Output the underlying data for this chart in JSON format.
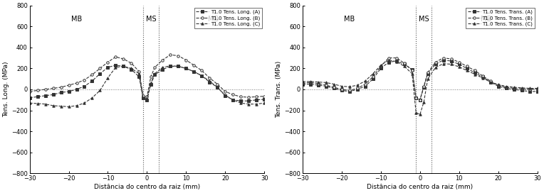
{
  "left_ylabel": "Tens. Long. (MPa)",
  "right_ylabel": "Tens. Trans. (MPa)",
  "xlabel": "Distância do centro da raiz (mm)",
  "xlim": [
    -30,
    30
  ],
  "ylim": [
    -800,
    800
  ],
  "yticks": [
    -800,
    -600,
    -400,
    -200,
    0,
    200,
    400,
    600,
    800
  ],
  "xticks": [
    -30,
    -20,
    -10,
    0,
    10,
    20,
    30
  ],
  "vlines": [
    -1,
    3
  ],
  "MB_label": "MB",
  "MS_label": "MS",
  "left_legend": [
    "T1.0 Tens. Long. (A)",
    "T1.0 Tens. Long. (B)",
    "T1.0 Tens. Long. (C)"
  ],
  "right_legend": [
    "T1.0 Tens. Trans. (A)",
    "T1.0 Tens. Trans. (B)",
    "T1.0 Tens. Trans. (C)"
  ],
  "long_A_x": [
    -30,
    -28,
    -26,
    -24,
    -22,
    -20,
    -18,
    -16,
    -14,
    -12,
    -10,
    -8,
    -6,
    -4,
    -2,
    -1,
    0,
    1,
    2,
    4,
    6,
    8,
    10,
    12,
    14,
    16,
    18,
    20,
    22,
    24,
    26,
    28,
    30
  ],
  "long_A_y": [
    -80,
    -70,
    -60,
    -50,
    -30,
    -20,
    0,
    30,
    80,
    150,
    210,
    230,
    220,
    190,
    120,
    -80,
    -100,
    50,
    140,
    190,
    220,
    220,
    200,
    170,
    130,
    70,
    20,
    -60,
    -100,
    -110,
    -110,
    -100,
    -95
  ],
  "long_B_x": [
    -30,
    -28,
    -26,
    -24,
    -22,
    -20,
    -18,
    -16,
    -14,
    -12,
    -10,
    -8,
    -6,
    -4,
    -2,
    -1,
    0,
    1,
    2,
    4,
    6,
    8,
    10,
    12,
    14,
    16,
    18,
    20,
    22,
    24,
    26,
    28,
    30
  ],
  "long_B_y": [
    -20,
    -10,
    0,
    10,
    20,
    40,
    60,
    90,
    140,
    200,
    260,
    310,
    290,
    250,
    170,
    -60,
    -70,
    120,
    210,
    280,
    330,
    320,
    280,
    230,
    180,
    110,
    50,
    -20,
    -50,
    -70,
    -75,
    -70,
    -65
  ],
  "long_C_x": [
    -30,
    -28,
    -26,
    -24,
    -22,
    -20,
    -18,
    -16,
    -14,
    -12,
    -10,
    -8,
    -6,
    -4,
    -2,
    -1,
    0,
    1,
    2,
    4,
    6,
    8,
    10,
    12,
    14,
    16,
    18,
    20,
    22,
    24,
    26,
    28,
    30
  ],
  "long_C_y": [
    -130,
    -135,
    -140,
    -155,
    -160,
    -165,
    -155,
    -130,
    -80,
    -10,
    110,
    210,
    220,
    200,
    150,
    -80,
    -90,
    60,
    150,
    210,
    225,
    220,
    200,
    170,
    130,
    80,
    20,
    -55,
    -100,
    -130,
    -140,
    -140,
    -130
  ],
  "trans_A_x": [
    -30,
    -28,
    -26,
    -24,
    -22,
    -20,
    -18,
    -16,
    -14,
    -12,
    -10,
    -8,
    -6,
    -4,
    -2,
    -1,
    0,
    1,
    2,
    4,
    6,
    8,
    10,
    12,
    14,
    16,
    18,
    20,
    22,
    24,
    26,
    28,
    30
  ],
  "trans_A_y": [
    50,
    50,
    40,
    30,
    10,
    -10,
    -20,
    0,
    30,
    100,
    200,
    260,
    270,
    240,
    190,
    -80,
    -100,
    20,
    150,
    240,
    280,
    270,
    240,
    200,
    160,
    120,
    70,
    30,
    10,
    0,
    -10,
    -20,
    -20
  ],
  "trans_B_x": [
    -30,
    -28,
    -26,
    -24,
    -22,
    -20,
    -18,
    -16,
    -14,
    -12,
    -10,
    -8,
    -6,
    -4,
    -2,
    -1,
    0,
    1,
    2,
    4,
    6,
    8,
    10,
    12,
    14,
    16,
    18,
    20,
    22,
    24,
    26,
    28,
    30
  ],
  "trans_B_y": [
    60,
    65,
    55,
    40,
    20,
    0,
    -10,
    10,
    50,
    120,
    220,
    300,
    300,
    250,
    180,
    -80,
    -100,
    30,
    160,
    260,
    300,
    290,
    260,
    220,
    180,
    130,
    80,
    40,
    20,
    10,
    5,
    0,
    5
  ],
  "trans_C_x": [
    -30,
    -28,
    -26,
    -24,
    -22,
    -20,
    -18,
    -16,
    -14,
    -12,
    -10,
    -8,
    -6,
    -4,
    -2,
    -1,
    0,
    1,
    2,
    4,
    6,
    8,
    10,
    12,
    14,
    16,
    18,
    20,
    22,
    24,
    26,
    28,
    30
  ],
  "trans_C_y": [
    75,
    75,
    70,
    65,
    50,
    30,
    25,
    40,
    80,
    150,
    230,
    280,
    265,
    220,
    150,
    -220,
    -240,
    -120,
    100,
    210,
    245,
    240,
    215,
    180,
    145,
    110,
    70,
    45,
    30,
    20,
    15,
    10,
    10
  ]
}
